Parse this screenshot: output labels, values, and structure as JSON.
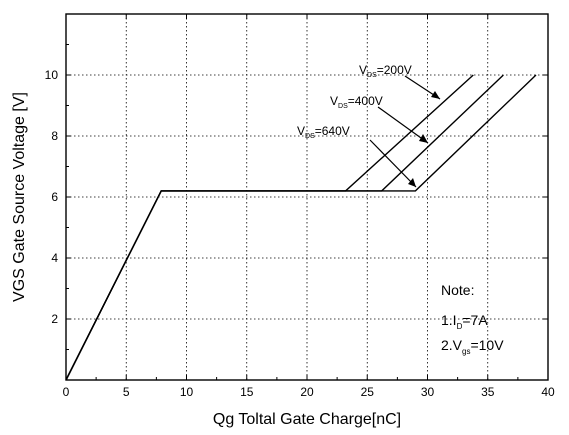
{
  "chart_data": {
    "type": "line",
    "title": "",
    "xlabel": "Qg Toltal Gate Charge[nC]",
    "ylabel": "VGS Gate Source Voltage [V]",
    "xlim": [
      0,
      40
    ],
    "ylim": [
      0,
      12
    ],
    "x_ticks": [
      0,
      5,
      10,
      15,
      20,
      25,
      30,
      35,
      40
    ],
    "y_ticks": [
      2,
      4,
      6,
      8,
      10
    ],
    "grid": true,
    "series": [
      {
        "name": "VDS=200V",
        "label_main": "V",
        "label_sub": "DS",
        "label_rest": "=200V",
        "points": [
          [
            0,
            0
          ],
          [
            7.9,
            6.2
          ],
          [
            23.2,
            6.2
          ],
          [
            33.8,
            10
          ]
        ]
      },
      {
        "name": "VDS=400V",
        "label_main": "V",
        "label_sub": "DS",
        "label_rest": "=400V",
        "points": [
          [
            0,
            0
          ],
          [
            7.9,
            6.2
          ],
          [
            26.2,
            6.2
          ],
          [
            36.3,
            10
          ]
        ]
      },
      {
        "name": "VDS=640V",
        "label_main": "V",
        "label_sub": "DS",
        "label_rest": "=640V",
        "points": [
          [
            0,
            0
          ],
          [
            7.9,
            6.2
          ],
          [
            29.0,
            6.2
          ],
          [
            39.0,
            10
          ]
        ]
      }
    ],
    "note": {
      "title": "Note:",
      "line1": {
        "prefix": "1.I",
        "sub": "D",
        "suffix": "=7A"
      },
      "line2": {
        "prefix": "2.V",
        "sub": "gs",
        "suffix": "=10V"
      }
    }
  }
}
